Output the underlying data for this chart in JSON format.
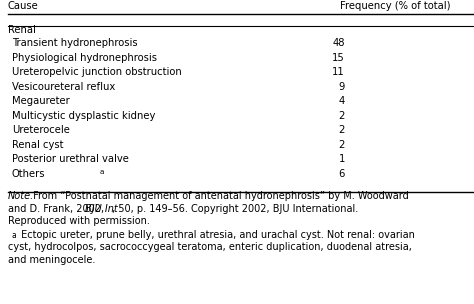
{
  "header_col1": "Cause",
  "header_col2": "Frequency (% of total)",
  "section_header": "Renal",
  "rows": [
    [
      "Transient hydronephrosis",
      "48"
    ],
    [
      "Physiological hydronephrosis",
      "15"
    ],
    [
      "Ureteropelvic junction obstruction",
      "11"
    ],
    [
      "Vesicoureteral reflux",
      "9"
    ],
    [
      "Megaureter",
      "4"
    ],
    [
      "Multicystic dysplastic kidney",
      "2"
    ],
    [
      "Ureterocele",
      "2"
    ],
    [
      "Renal cyst",
      "2"
    ],
    [
      "Posterior urethral valve",
      "1"
    ],
    [
      "Others",
      "6"
    ]
  ],
  "note_italic_word": "Note.",
  "note_line1_rest": " From “Postnatal management of antenatal hydronephrosis” by M. Woodward",
  "note_line2a": "and D. Frank, 2002, ",
  "note_line2b": "BJU Int",
  "note_line2c": ", 50, p. 149–56. Copyright 2002, BJU International.",
  "note_line3": "Reproduced with permission.",
  "footnote_super": "a",
  "footnote_rest": " Ectopic ureter, prune belly, urethral atresia, and urachal cyst. Not renal: ovarian",
  "footnote_line2": "cyst, hydrocolpos, sacrococcygeal teratoma, enteric duplication, duodenal atresia,",
  "footnote_line3": "and meningocele.",
  "bg_color": "#ffffff",
  "text_color": "#000000",
  "font_size": 7.2,
  "note_font_size": 7.0
}
